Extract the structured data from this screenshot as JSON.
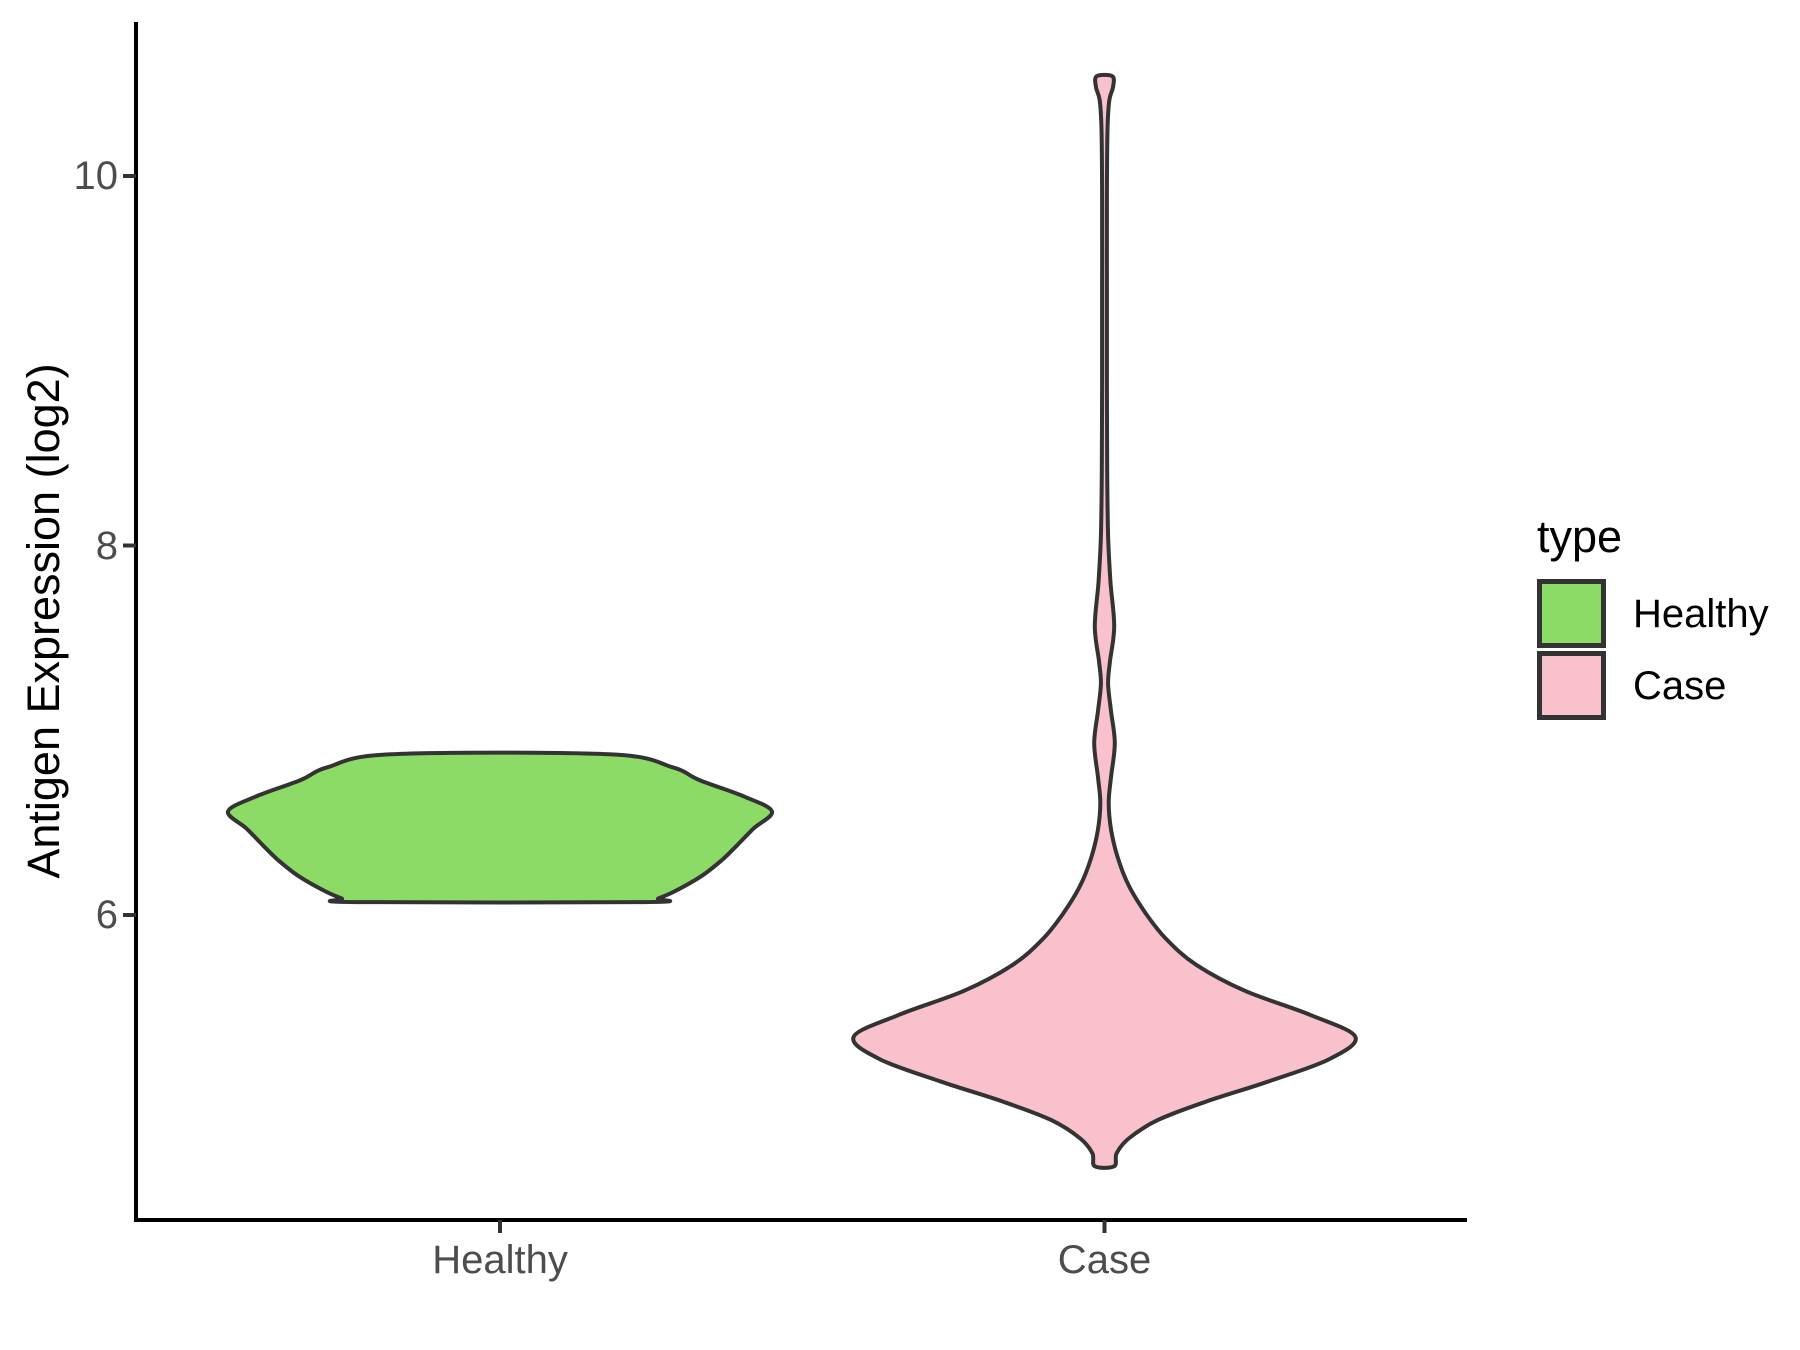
{
  "chart_data": {
    "type": "violin",
    "title": "",
    "xlabel": "",
    "ylabel": "Antigen Expression (log2)",
    "categories": [
      "Healthy",
      "Case"
    ],
    "y_ticks": [
      6,
      8,
      10
    ],
    "ylim": [
      4.35,
      10.83
    ],
    "grid": "off",
    "legend": {
      "title": "type",
      "position": "right",
      "entries": [
        {
          "label": "Healthy",
          "color": "#8DDB67"
        },
        {
          "label": "Case",
          "color": "#F8C1CC"
        }
      ]
    },
    "colors": {
      "healthy_fill": "#8DDB67",
      "case_fill": "#F8C1CC",
      "violin_outline": "#333333",
      "axis_line": "#000000",
      "tick_mark": "#333333",
      "tick_label": "#4D4D4D"
    },
    "series": [
      {
        "name": "Healthy",
        "fill": "#8DDB67",
        "position": 1,
        "value_range": [
          6.07,
          6.87
        ],
        "peak_value": 6.56,
        "profile": [
          [
            6.87,
            0.18
          ],
          [
            6.8,
            0.285
          ],
          [
            6.73,
            0.33
          ],
          [
            6.64,
            0.405
          ],
          [
            6.56,
            0.45
          ],
          [
            6.47,
            0.42
          ],
          [
            6.38,
            0.393
          ],
          [
            6.3,
            0.368
          ],
          [
            6.21,
            0.333
          ],
          [
            6.13,
            0.29
          ],
          [
            6.09,
            0.262
          ],
          [
            6.07,
            0.24
          ]
        ]
      },
      {
        "name": "Case",
        "fill": "#F8C1CC",
        "position": 2,
        "value_range": [
          4.64,
          10.54
        ],
        "peak_value": 5.34,
        "profile": [
          [
            10.54,
            0.013
          ],
          [
            10.48,
            0.014
          ],
          [
            10.41,
            0.008
          ],
          [
            10.25,
            0.005
          ],
          [
            9.9,
            0.004
          ],
          [
            9.4,
            0.004
          ],
          [
            8.9,
            0.004
          ],
          [
            8.4,
            0.0045
          ],
          [
            8.05,
            0.006
          ],
          [
            7.8,
            0.01
          ],
          [
            7.56,
            0.016
          ],
          [
            7.37,
            0.009
          ],
          [
            7.25,
            0.006
          ],
          [
            7.1,
            0.011
          ],
          [
            6.93,
            0.017
          ],
          [
            6.75,
            0.011
          ],
          [
            6.61,
            0.007
          ],
          [
            6.46,
            0.011
          ],
          [
            6.31,
            0.022
          ],
          [
            6.16,
            0.04
          ],
          [
            6.01,
            0.068
          ],
          [
            5.87,
            0.102
          ],
          [
            5.73,
            0.152
          ],
          [
            5.59,
            0.232
          ],
          [
            5.46,
            0.34
          ],
          [
            5.34,
            0.415
          ],
          [
            5.22,
            0.372
          ],
          [
            5.1,
            0.272
          ],
          [
            4.99,
            0.168
          ],
          [
            4.89,
            0.088
          ],
          [
            4.79,
            0.04
          ],
          [
            4.71,
            0.02
          ],
          [
            4.64,
            0.016
          ]
        ]
      }
    ]
  }
}
